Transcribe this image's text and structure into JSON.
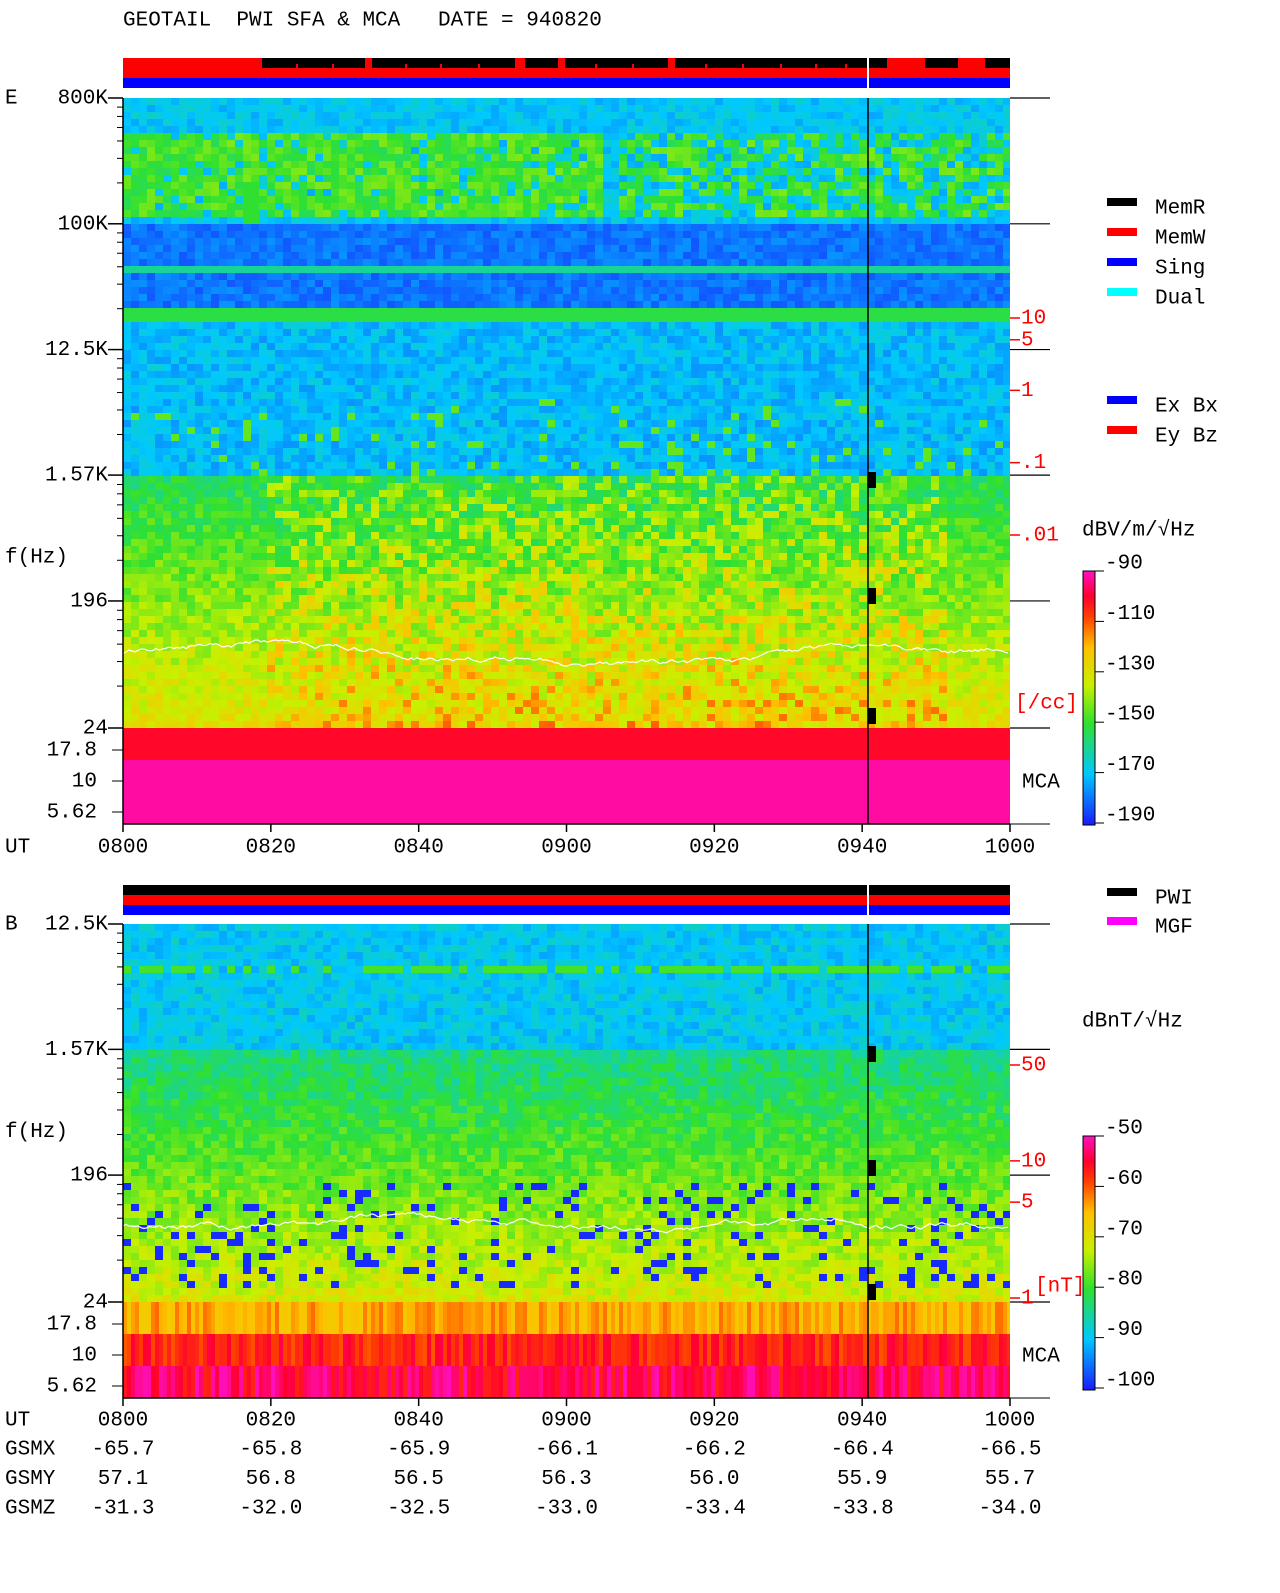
{
  "title": "GEOTAIL  PWI SFA & MCA   DATE = 940820",
  "panels": [
    {
      "label": "E",
      "ylabel": "f(Hz)",
      "time_label": "UT",
      "mca_label": "MCA",
      "ylim": [
        24,
        800000
      ],
      "yticks": [
        {
          "value": 800000,
          "label": "800K"
        },
        {
          "value": 100000,
          "label": "100K"
        },
        {
          "value": 12500,
          "label": "12.5K"
        },
        {
          "value": 1570,
          "label": "1.57K"
        },
        196,
        24
      ],
      "mca_ticks": [
        17.8,
        10,
        5.62
      ],
      "xlim": [
        480,
        600
      ],
      "xticks": [
        {
          "value": 480,
          "label": "0800"
        },
        {
          "value": 500,
          "label": "0820"
        },
        {
          "value": 520,
          "label": "0840"
        },
        {
          "value": 540,
          "label": "0900"
        },
        {
          "value": 560,
          "label": "0920"
        },
        {
          "value": 580,
          "label": "0940"
        },
        {
          "value": 600,
          "label": "1000"
        }
      ],
      "scale_lim": [
        0.01,
        10
      ],
      "scale_ticks": [
        10,
        5,
        1,
        {
          "value": 0.1,
          "label": ".1"
        },
        {
          "value": 0.01,
          "label": ".01"
        }
      ],
      "scale_unit": "[/cc]",
      "colorbar_label": "dBV/m/√Hz",
      "clim": [
        -190,
        -90
      ],
      "colorbar_ticks": [
        -90,
        -110,
        -130,
        -150,
        -170,
        -190
      ],
      "legend": [
        [
          {
            "name": "MemR",
            "color": "#000000"
          },
          {
            "name": "MemW",
            "color": "#ff0000"
          },
          {
            "name": "Sing",
            "color": "#0000ff"
          },
          {
            "name": "Dual",
            "color": "#00ffff"
          }
        ],
        [
          {
            "name": "Ex Bx",
            "color": "#0000ff"
          },
          {
            "name": "Ey Bz",
            "color": "#ff0000"
          }
        ]
      ]
    },
    {
      "label": "B",
      "ylabel": "f(Hz)",
      "time_label": "UT",
      "mca_label": "MCA",
      "ylim": [
        24,
        12500
      ],
      "yticks": [
        {
          "value": 12500,
          "label": "12.5K"
        },
        {
          "value": 1570,
          "label": "1.57K"
        },
        196,
        24
      ],
      "mca_ticks": [
        17.8,
        10,
        5.62
      ],
      "xlim": [
        480,
        600
      ],
      "xticks": [
        {
          "value": 480,
          "label": "0800"
        },
        {
          "value": 500,
          "label": "0820"
        },
        {
          "value": 520,
          "label": "0840"
        },
        {
          "value": 540,
          "label": "0900"
        },
        {
          "value": 560,
          "label": "0920"
        },
        {
          "value": 580,
          "label": "0940"
        },
        {
          "value": 600,
          "label": "1000"
        }
      ],
      "scale_lim": [
        1,
        50
      ],
      "scale_ticks": [
        50,
        10,
        5,
        1
      ],
      "scale_unit": "[nT]",
      "colorbar_label": "dBnT/√Hz",
      "clim": [
        -100,
        -50
      ],
      "colorbar_ticks": [
        -50,
        -60,
        -70,
        -80,
        -90,
        -100
      ],
      "legend": [
        [
          {
            "name": "PWI",
            "color": "#000000"
          },
          {
            "name": "MGF",
            "color": "#ff00ff"
          }
        ]
      ]
    }
  ],
  "orbit": {
    "rows": [
      {
        "label": "GSMX",
        "values": [
          "-65.7",
          "-65.8",
          "-65.9",
          "-66.1",
          "-66.2",
          "-66.4",
          "-66.5"
        ]
      },
      {
        "label": "GSMY",
        "values": [
          "57.1",
          "56.8",
          "56.5",
          "56.3",
          "56.0",
          "55.9",
          "55.7"
        ]
      },
      {
        "label": "GSMZ",
        "values": [
          "-31.3",
          "-32.0",
          "-32.5",
          "-33.0",
          "-33.4",
          "-33.8",
          "-34.0"
        ]
      }
    ]
  }
}
